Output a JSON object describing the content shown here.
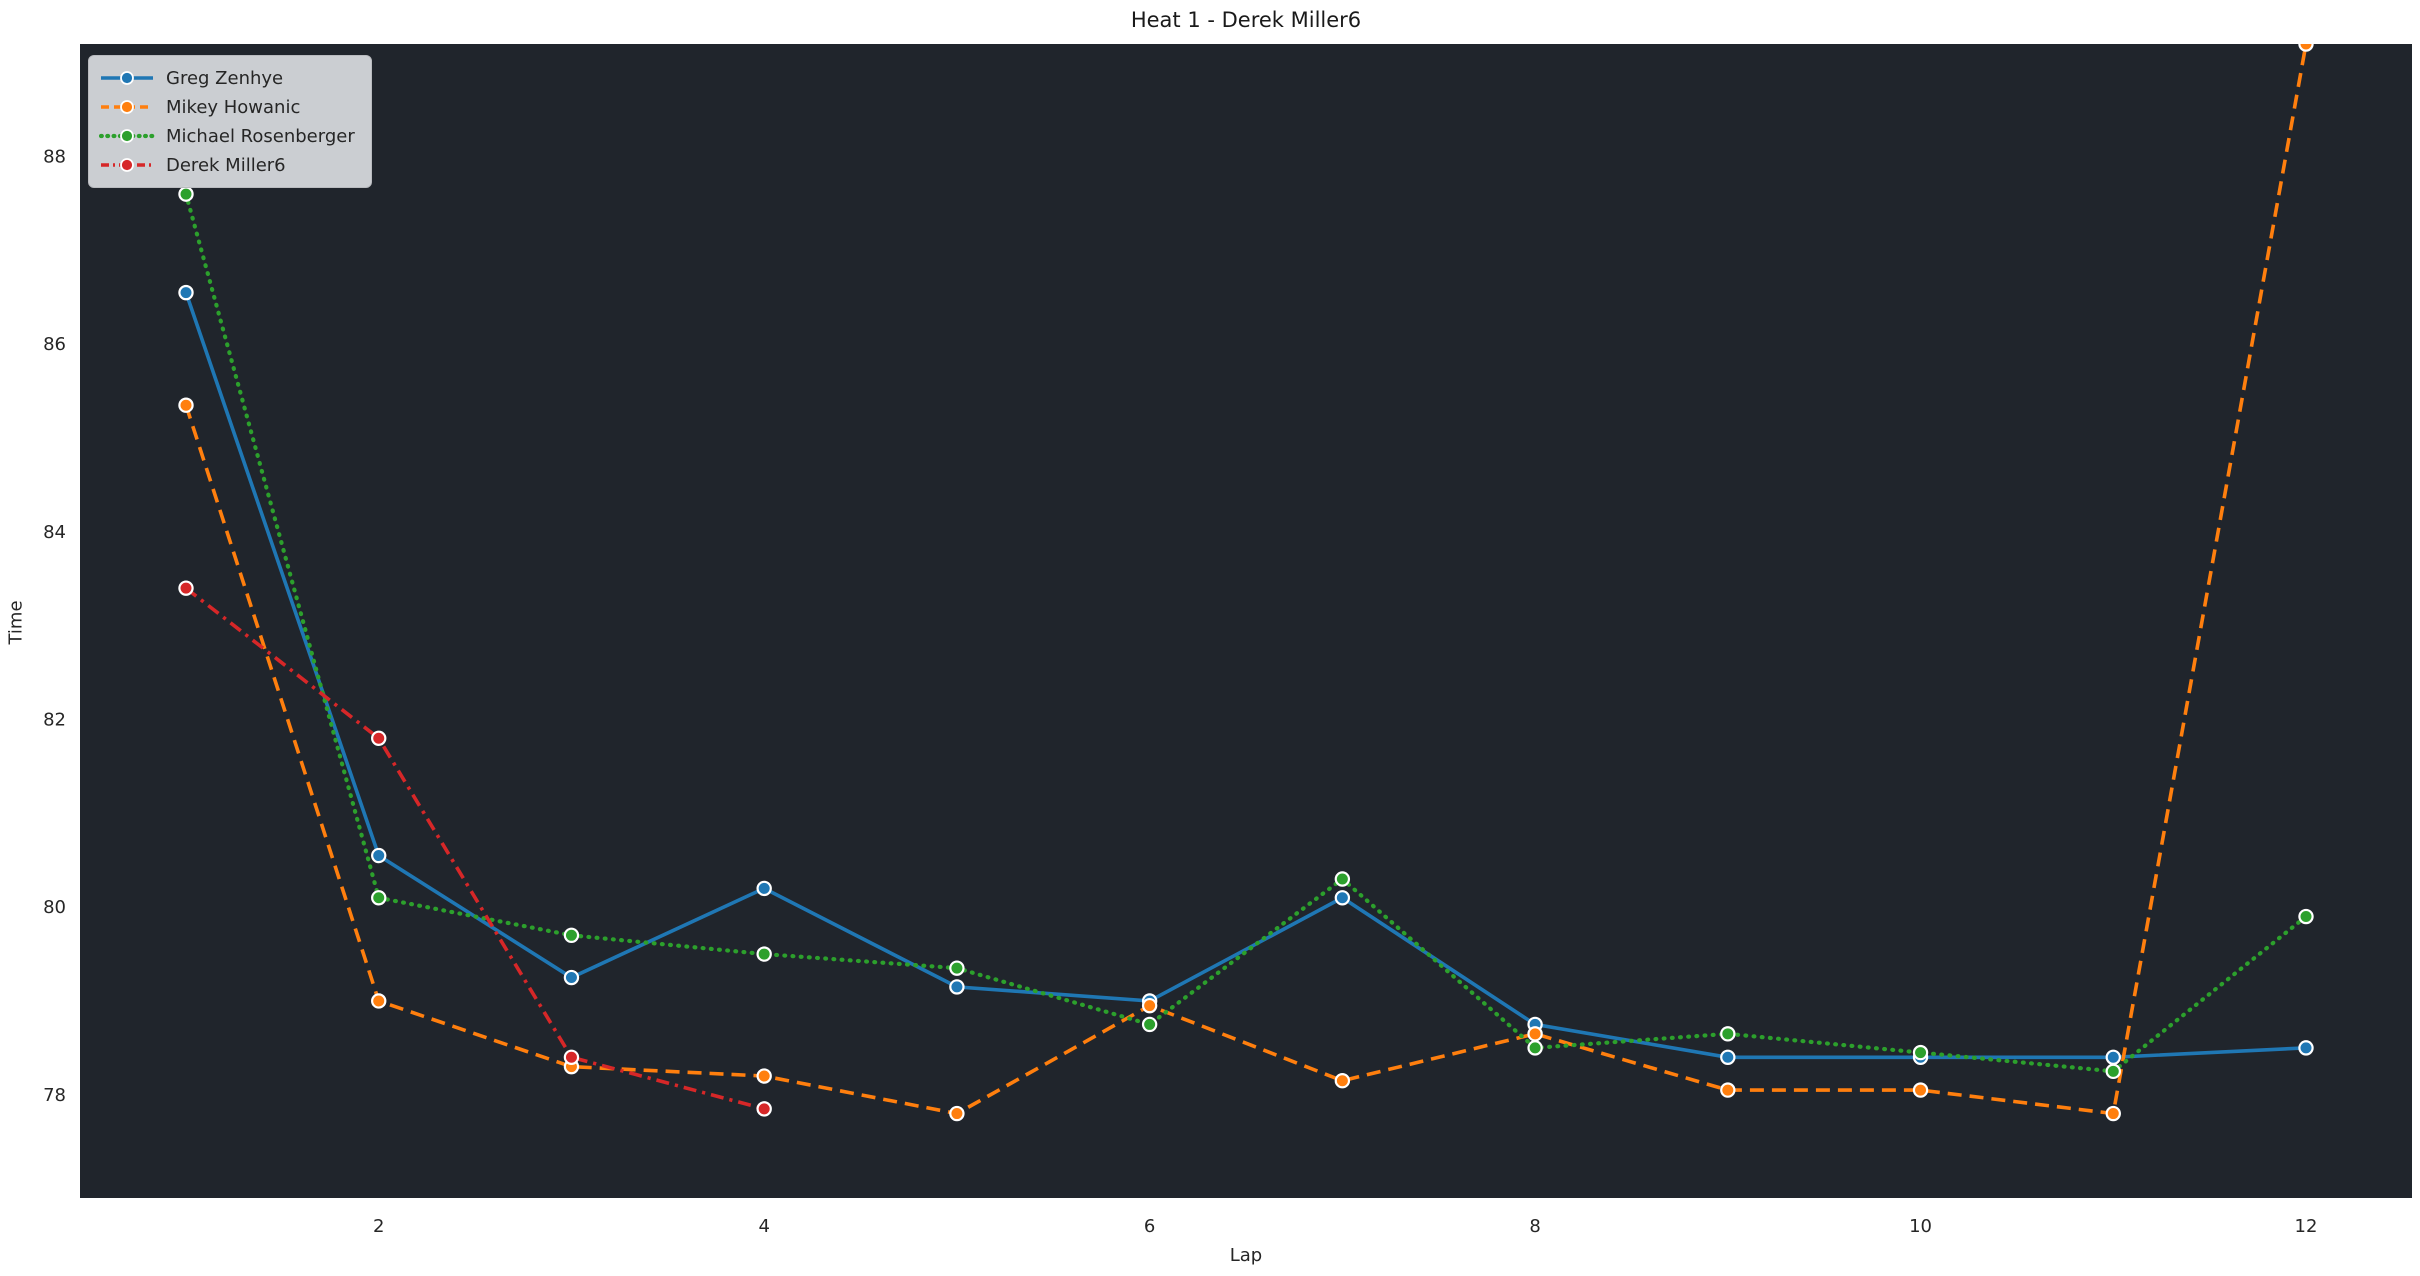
{
  "chart_data": {
    "type": "line",
    "title": "Heat 1 - Derek Miller6",
    "xlabel": "Lap",
    "ylabel": "Time",
    "xticks": [
      2,
      4,
      6,
      8,
      10,
      12
    ],
    "yticks": [
      78,
      80,
      82,
      84,
      86,
      88
    ],
    "xlim": [
      0.45,
      12.55
    ],
    "ylim": [
      76.9,
      89.2
    ],
    "grid": false,
    "legend_position": "upper-left",
    "plot_background": "#20252c",
    "figure_background": "#ffffff",
    "tick_color": "#262626",
    "series": [
      {
        "name": "Greg Zenhye",
        "color": "#1f77b4",
        "style": "solid",
        "x": [
          1,
          2,
          3,
          4,
          5,
          6,
          7,
          8,
          9,
          10,
          11,
          12
        ],
        "values": [
          86.55,
          80.55,
          79.25,
          80.2,
          79.15,
          79.0,
          80.1,
          78.75,
          78.4,
          78.4,
          78.4,
          78.5
        ]
      },
      {
        "name": "Mikey Howanic",
        "color": "#ff7f0e",
        "style": "dashed",
        "x": [
          1,
          2,
          3,
          4,
          5,
          6,
          7,
          8,
          9,
          10,
          11,
          12
        ],
        "values": [
          85.35,
          79.0,
          78.3,
          78.2,
          77.8,
          78.95,
          78.15,
          78.65,
          78.05,
          78.05,
          77.8,
          89.2
        ]
      },
      {
        "name": "Michael Rosenberger",
        "color": "#2ca02c",
        "style": "dotted",
        "x": [
          1,
          2,
          3,
          4,
          5,
          6,
          7,
          8,
          9,
          10,
          11,
          12
        ],
        "values": [
          87.6,
          80.1,
          79.7,
          79.5,
          79.35,
          78.75,
          80.3,
          78.5,
          78.65,
          78.45,
          78.25,
          79.9
        ]
      },
      {
        "name": "Derek Miller6",
        "color": "#d62728",
        "style": "dashdot",
        "x": [
          1,
          2,
          3,
          4
        ],
        "values": [
          83.4,
          81.8,
          78.4,
          77.85
        ]
      }
    ]
  }
}
